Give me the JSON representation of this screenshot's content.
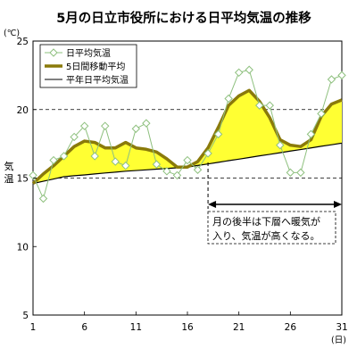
{
  "chart_data": {
    "type": "line",
    "title": "5月の日立市役所における日平均気温の推移",
    "ylabel": "気温",
    "y_unit": "(℃)",
    "x_unit": "(日)",
    "ylim": [
      5,
      25
    ],
    "xlim": [
      1,
      31
    ],
    "y_ticks": [
      5,
      10,
      15,
      20,
      25
    ],
    "y_dashed_gridlines": [
      15,
      20
    ],
    "x_ticks": [
      1,
      6,
      11,
      16,
      21,
      26,
      31
    ],
    "x": [
      1,
      2,
      3,
      4,
      5,
      6,
      7,
      8,
      9,
      10,
      11,
      12,
      13,
      14,
      15,
      16,
      17,
      18,
      19,
      20,
      21,
      22,
      23,
      24,
      25,
      26,
      27,
      28,
      29,
      30,
      31
    ],
    "series": [
      {
        "name": "日平均気温",
        "color": "#8ec07e",
        "marker": "diamond-open",
        "values": [
          15.2,
          13.5,
          16.3,
          16.6,
          18.0,
          18.8,
          16.6,
          18.8,
          16.2,
          15.9,
          18.6,
          19.0,
          16.0,
          15.5,
          15.2,
          16.3,
          15.6,
          16.8,
          18.2,
          20.8,
          22.7,
          22.9,
          20.3,
          20.3,
          17.4,
          15.4,
          15.4,
          18.2,
          19.7,
          22.2,
          22.5
        ]
      },
      {
        "name": "5日間移動平均",
        "color": "#8a7a0a",
        "values": [
          14.6,
          15.3,
          15.9,
          16.6,
          17.3,
          17.7,
          17.6,
          17.2,
          17.2,
          17.6,
          17.2,
          17.1,
          16.9,
          16.4,
          15.8,
          15.8,
          16.2,
          17.2,
          18.7,
          20.3,
          21.0,
          21.4,
          20.6,
          19.4,
          17.8,
          17.4,
          17.3,
          17.8,
          19.5,
          20.4,
          20.7
        ]
      },
      {
        "name": "平年日平均気温",
        "color": "#000000",
        "values": [
          14.6,
          14.77,
          14.93,
          15.1,
          15.17,
          15.23,
          15.3,
          15.37,
          15.43,
          15.5,
          15.55,
          15.6,
          15.65,
          15.7,
          15.75,
          15.8,
          15.92,
          16.03,
          16.15,
          16.27,
          16.38,
          16.5,
          16.62,
          16.73,
          16.85,
          16.97,
          17.08,
          17.2,
          17.32,
          17.43,
          17.55
        ]
      }
    ],
    "fill_color": "#ffff33",
    "legend_placement": "top-left",
    "annotation": {
      "text_line1": "月の後半は下層へ暖気が",
      "text_line2": "入り、気温が高くなる。",
      "arrow_from_day": 18,
      "arrow_to_day": 31
    }
  }
}
